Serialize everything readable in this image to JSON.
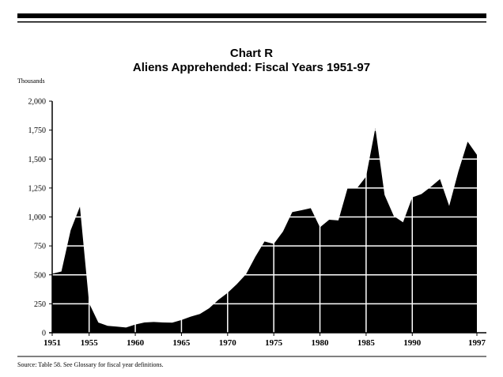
{
  "chart_data": {
    "type": "area",
    "title": "Chart R",
    "subtitle": "Aliens Apprehended:  Fiscal Years 1951-97",
    "y_label": "Thousands",
    "source": "Source:  Table 58.  See Glossary for fiscal year definitions.",
    "x": [
      1951,
      1952,
      1953,
      1954,
      1955,
      1956,
      1957,
      1958,
      1959,
      1960,
      1961,
      1962,
      1963,
      1964,
      1965,
      1966,
      1967,
      1968,
      1969,
      1970,
      1971,
      1972,
      1973,
      1974,
      1975,
      1976,
      1977,
      1978,
      1979,
      1980,
      1981,
      1982,
      1983,
      1984,
      1985,
      1986,
      1987,
      1988,
      1989,
      1990,
      1991,
      1992,
      1993,
      1994,
      1995,
      1996,
      1997
    ],
    "values": [
      509,
      529,
      885,
      1089,
      254,
      88,
      60,
      53,
      45,
      71,
      89,
      93,
      89,
      87,
      110,
      139,
      162,
      212,
      284,
      345,
      420,
      506,
      656,
      788,
      767,
      875,
      1042,
      1058,
      1076,
      910,
      976,
      970,
      1251,
      1247,
      1349,
      1767,
      1190,
      1008,
      954,
      1169,
      1198,
      1259,
      1327,
      1095,
      1394,
      1650,
      1537
    ],
    "color": "#000000",
    "grid": true,
    "xlim": [
      1951,
      1997
    ],
    "xticks": [
      1951,
      1955,
      1960,
      1965,
      1970,
      1975,
      1980,
      1985,
      1990,
      1997
    ],
    "ylim": [
      0,
      2000
    ],
    "yticks": [
      0,
      {
        "value": 250,
        "label": "250"
      },
      {
        "value": 500,
        "label": "500"
      },
      {
        "value": 750,
        "label": "750"
      },
      {
        "value": 1000,
        "label": "1,000"
      },
      {
        "value": 1250,
        "label": "1,250"
      },
      {
        "value": 1500,
        "label": "1,500"
      },
      {
        "value": 1750,
        "label": "1,750"
      },
      {
        "value": 2000,
        "label": "2,000"
      }
    ]
  }
}
